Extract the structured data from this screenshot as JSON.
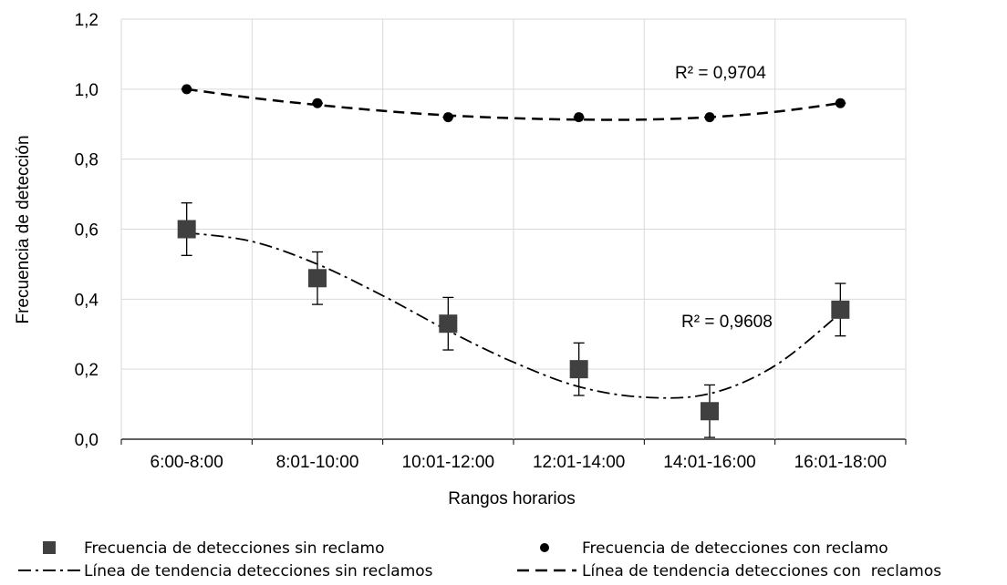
{
  "chart_data": {
    "type": "scatter",
    "title": "",
    "xlabel": "Rangos horarios",
    "ylabel": "Frecuencia de detección",
    "categories": [
      "6:00-8:00",
      "8:01-10:00",
      "10:01-12:00",
      "12:01-14:00",
      "14:01-16:00",
      "16:01-18:00"
    ],
    "ylim": [
      0,
      1.2
    ],
    "yticks": [
      "0,0",
      "0,2",
      "0,4",
      "0,6",
      "0,8",
      "1,0",
      "1,2"
    ],
    "grid": true,
    "legend_position": "bottom",
    "series": [
      {
        "name": "Frecuencia de detecciones sin reclamo",
        "marker": "square",
        "values": [
          0.6,
          0.46,
          0.33,
          0.2,
          0.08,
          0.37
        ],
        "error": [
          0.075,
          0.075,
          0.075,
          0.075,
          0.075,
          0.075
        ],
        "color": "#404040"
      },
      {
        "name": "Frecuencia de detecciones con reclamo",
        "marker": "circle",
        "values": [
          1.0,
          0.96,
          0.92,
          0.92,
          0.92,
          0.96
        ],
        "error": [
          0.008,
          0.008,
          0.008,
          0.008,
          0.008,
          0.008
        ],
        "color": "#000000"
      }
    ],
    "trendlines": [
      {
        "name": "Línea de tendencia detecciones sin reclamos",
        "style": "dash-dot",
        "r2_label": "R² = 0,9608",
        "points": [
          [
            0,
            0.59
          ],
          [
            0.5,
            0.565
          ],
          [
            1,
            0.5
          ],
          [
            1.5,
            0.41
          ],
          [
            2,
            0.31
          ],
          [
            2.5,
            0.22
          ],
          [
            3,
            0.15
          ],
          [
            3.5,
            0.12
          ],
          [
            4,
            0.13
          ],
          [
            4.5,
            0.21
          ],
          [
            5,
            0.36
          ]
        ]
      },
      {
        "name": "Línea de tendencia detecciones con  reclamos",
        "style": "dash",
        "r2_label": "R² = 0,9704",
        "points": [
          [
            0,
            1.0
          ],
          [
            0.5,
            0.975
          ],
          [
            1,
            0.955
          ],
          [
            1.5,
            0.938
          ],
          [
            2,
            0.925
          ],
          [
            2.5,
            0.917
          ],
          [
            3,
            0.913
          ],
          [
            3.5,
            0.913
          ],
          [
            4,
            0.92
          ],
          [
            4.5,
            0.935
          ],
          [
            5,
            0.96
          ]
        ]
      }
    ]
  }
}
